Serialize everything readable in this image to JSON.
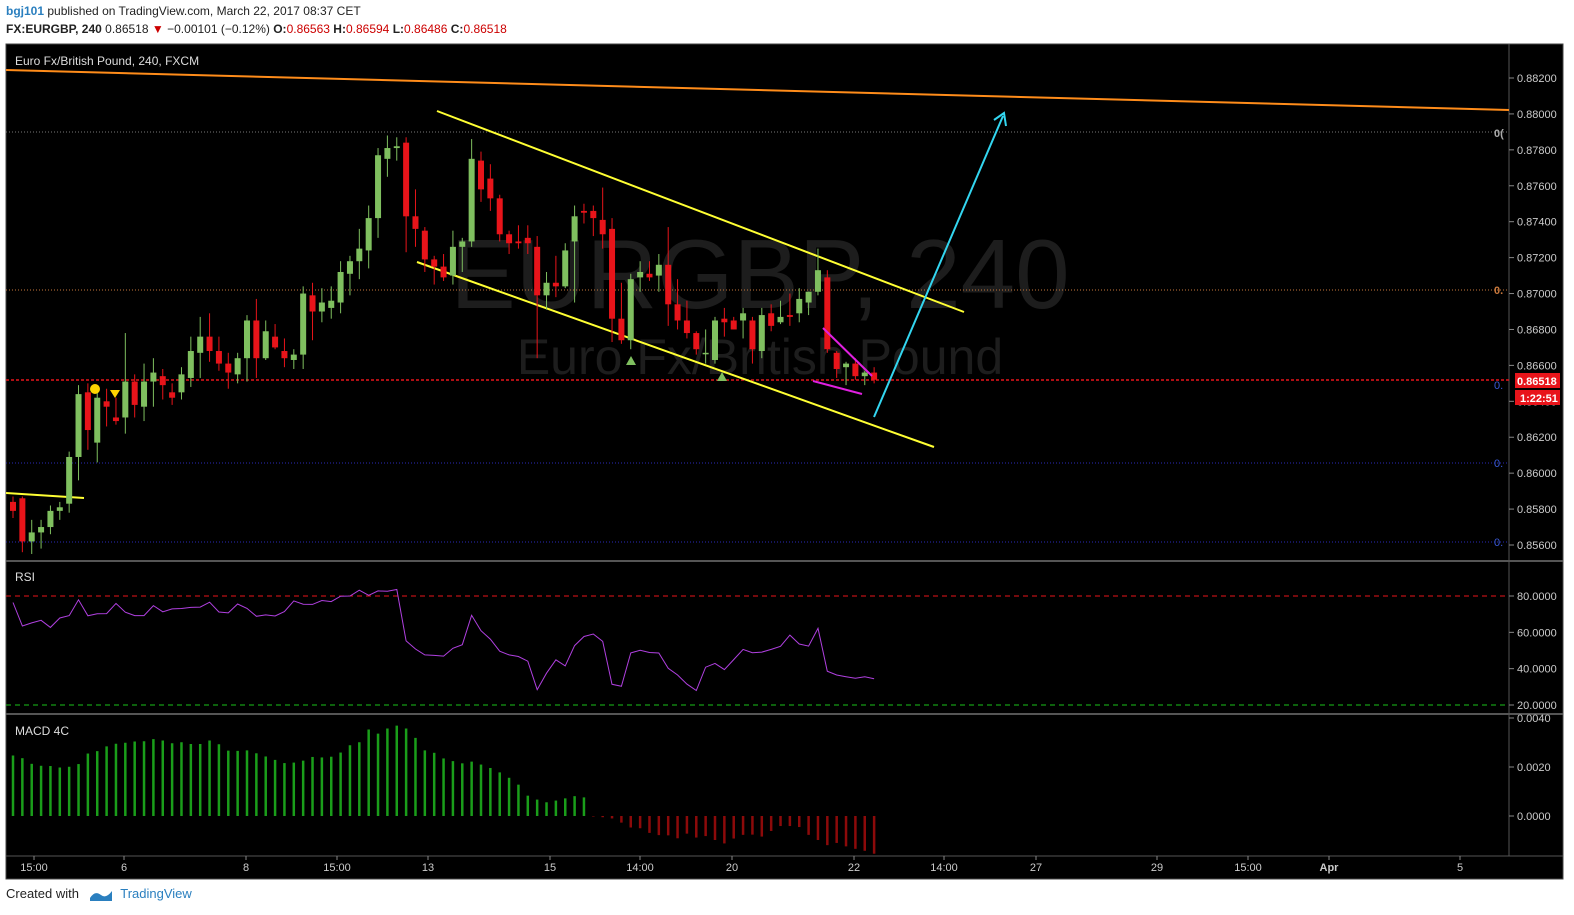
{
  "header": {
    "user": "bgj101",
    "published_text": "published on TradingView.com, March 22, 2017 08:37 CET",
    "symbol": "FX:EURGBP, 240",
    "last": "0.86518",
    "change": "−0.00101 (−0.12%)",
    "o_label": "O:",
    "o": "0.86563",
    "h_label": "H:",
    "h": "0.86594",
    "l_label": "L:",
    "l": "0.86486",
    "c_label": "C:",
    "c": "0.86518"
  },
  "chart_title": "Euro Fx/British Pound, 240, FXCM",
  "watermark": {
    "symbol": "EURGBP, 240",
    "name": "Euro Fx/British Pound"
  },
  "price_tag": "0.86518",
  "countdown": "1:22:51",
  "fib_labels": [
    "0(",
    "0.",
    "0.",
    "0.",
    "0."
  ],
  "footer": {
    "created_with": "Created with",
    "brand": "TradingView"
  },
  "colors": {
    "background": "#000000",
    "up": "#7fbf5f",
    "down": "#e8141a",
    "channel": "#ffff33",
    "resistance": "#ff8c1a",
    "arrow": "#33d6f0",
    "wedge": "#e020e0",
    "rsi": "#b040e0",
    "macd_up": "#1a9e1a",
    "macd_down": "#8c0a0a"
  },
  "chart_data": [
    {
      "type": "candlestick",
      "title": "Euro Fx/British Pound, 240, FXCM",
      "ylim": [
        0.8549,
        0.8834
      ],
      "yticks": [
        "0.88200",
        "0.88000",
        "0.87800",
        "0.87600",
        "0.87400",
        "0.87200",
        "0.87000",
        "0.86800",
        "0.86600",
        "0.86400",
        "0.86200",
        "0.86000",
        "0.85800",
        "0.85600"
      ],
      "xticks": [
        "15:00",
        "6",
        "8",
        "15:00",
        "13",
        "15",
        "14:00",
        "20",
        "22",
        "14:00",
        "27",
        "29",
        "15:00",
        "Apr",
        "5"
      ],
      "candles": [
        [
          0.8584,
          0.8587,
          0.8575,
          0.8579
        ],
        [
          0.8586,
          0.8587,
          0.8556,
          0.8562
        ],
        [
          0.8562,
          0.8574,
          0.8555,
          0.8567
        ],
        [
          0.8567,
          0.8574,
          0.8558,
          0.857
        ],
        [
          0.857,
          0.8582,
          0.8566,
          0.8579
        ],
        [
          0.8579,
          0.8584,
          0.8574,
          0.8581
        ],
        [
          0.8583,
          0.8612,
          0.8578,
          0.8609
        ],
        [
          0.8609,
          0.8649,
          0.8596,
          0.8644
        ],
        [
          0.8645,
          0.865,
          0.8613,
          0.8624
        ],
        [
          0.8617,
          0.8647,
          0.8606,
          0.8642
        ],
        [
          0.864,
          0.8647,
          0.8626,
          0.8637
        ],
        [
          0.8631,
          0.8642,
          0.8627,
          0.8629
        ],
        [
          0.8631,
          0.8678,
          0.8622,
          0.8651
        ],
        [
          0.8651,
          0.8655,
          0.8631,
          0.8638
        ],
        [
          0.8637,
          0.8661,
          0.8629,
          0.8651
        ],
        [
          0.8651,
          0.8664,
          0.8637,
          0.8656
        ],
        [
          0.8654,
          0.8658,
          0.8641,
          0.8649
        ],
        [
          0.8645,
          0.865,
          0.8638,
          0.8642
        ],
        [
          0.8645,
          0.8659,
          0.8641,
          0.8655
        ],
        [
          0.8653,
          0.8676,
          0.8648,
          0.8668
        ],
        [
          0.8667,
          0.8687,
          0.8653,
          0.8676
        ],
        [
          0.8676,
          0.8689,
          0.8662,
          0.8668
        ],
        [
          0.8668,
          0.8676,
          0.8657,
          0.8661
        ],
        [
          0.8661,
          0.8667,
          0.8647,
          0.8656
        ],
        [
          0.8655,
          0.8667,
          0.865,
          0.8664
        ],
        [
          0.8664,
          0.8688,
          0.8651,
          0.8685
        ],
        [
          0.8685,
          0.8697,
          0.8653,
          0.8664
        ],
        [
          0.8664,
          0.8685,
          0.8663,
          0.8679
        ],
        [
          0.8676,
          0.8683,
          0.8669,
          0.867
        ],
        [
          0.8668,
          0.8675,
          0.8659,
          0.8664
        ],
        [
          0.8663,
          0.8669,
          0.8658,
          0.8666
        ],
        [
          0.8666,
          0.8704,
          0.8658,
          0.87
        ],
        [
          0.8699,
          0.8706,
          0.8674,
          0.869
        ],
        [
          0.869,
          0.8703,
          0.8684,
          0.8695
        ],
        [
          0.8692,
          0.8704,
          0.8686,
          0.8696
        ],
        [
          0.8695,
          0.8718,
          0.8689,
          0.8712
        ],
        [
          0.8711,
          0.8721,
          0.8699,
          0.8718
        ],
        [
          0.8718,
          0.8736,
          0.8708,
          0.8725
        ],
        [
          0.8724,
          0.8749,
          0.8714,
          0.8742
        ],
        [
          0.8742,
          0.8781,
          0.8731,
          0.8777
        ],
        [
          0.8775,
          0.8788,
          0.8765,
          0.8781
        ],
        [
          0.8781,
          0.8787,
          0.8774,
          0.8782
        ],
        [
          0.8784,
          0.8787,
          0.8723,
          0.8743
        ],
        [
          0.8743,
          0.8758,
          0.8726,
          0.8736
        ],
        [
          0.8735,
          0.8737,
          0.8712,
          0.8719
        ],
        [
          0.8719,
          0.8721,
          0.8705,
          0.8715
        ],
        [
          0.8715,
          0.8722,
          0.8707,
          0.8709
        ],
        [
          0.871,
          0.8735,
          0.8705,
          0.8726
        ],
        [
          0.8726,
          0.8731,
          0.8712,
          0.8729
        ],
        [
          0.8729,
          0.8786,
          0.8726,
          0.8775
        ],
        [
          0.8774,
          0.8779,
          0.8751,
          0.8758
        ],
        [
          0.8764,
          0.8772,
          0.8746,
          0.8753
        ],
        [
          0.8753,
          0.8755,
          0.8729,
          0.8733
        ],
        [
          0.8733,
          0.8735,
          0.8722,
          0.8728
        ],
        [
          0.8729,
          0.8738,
          0.8725,
          0.8728
        ],
        [
          0.8731,
          0.8738,
          0.8722,
          0.8728
        ],
        [
          0.8726,
          0.8732,
          0.8664,
          0.8699
        ],
        [
          0.8699,
          0.8712,
          0.8691,
          0.8706
        ],
        [
          0.8706,
          0.8721,
          0.8698,
          0.8704
        ],
        [
          0.8704,
          0.8728,
          0.8703,
          0.8724
        ],
        [
          0.8729,
          0.8749,
          0.8695,
          0.8743
        ],
        [
          0.8746,
          0.875,
          0.8739,
          0.8745
        ],
        [
          0.8746,
          0.8749,
          0.8732,
          0.8742
        ],
        [
          0.8741,
          0.8759,
          0.8725,
          0.8733
        ],
        [
          0.8736,
          0.8742,
          0.8673,
          0.8686
        ],
        [
          0.8686,
          0.8706,
          0.8672,
          0.8674
        ],
        [
          0.8674,
          0.8711,
          0.8669,
          0.8708
        ],
        [
          0.8709,
          0.8718,
          0.8701,
          0.8712
        ],
        [
          0.8711,
          0.8718,
          0.8707,
          0.8709
        ],
        [
          0.871,
          0.8722,
          0.8701,
          0.8716
        ],
        [
          0.8716,
          0.8737,
          0.8682,
          0.8694
        ],
        [
          0.8694,
          0.8708,
          0.868,
          0.8685
        ],
        [
          0.8685,
          0.8696,
          0.8675,
          0.8678
        ],
        [
          0.8678,
          0.8679,
          0.8666,
          0.8669
        ],
        [
          0.8667,
          0.868,
          0.8661,
          0.8667
        ],
        [
          0.8663,
          0.8687,
          0.8661,
          0.8685
        ],
        [
          0.8686,
          0.8692,
          0.8676,
          0.8684
        ],
        [
          0.8685,
          0.8687,
          0.868,
          0.868
        ],
        [
          0.8685,
          0.8692,
          0.8675,
          0.8689
        ],
        [
          0.8685,
          0.8687,
          0.8661,
          0.8669
        ],
        [
          0.8668,
          0.8692,
          0.8664,
          0.8688
        ],
        [
          0.8689,
          0.8694,
          0.8679,
          0.8682
        ],
        [
          0.8684,
          0.8696,
          0.8683,
          0.8687
        ],
        [
          0.8688,
          0.87,
          0.8682,
          0.8687
        ],
        [
          0.8689,
          0.8703,
          0.8684,
          0.8697
        ],
        [
          0.8695,
          0.8701,
          0.8688,
          0.8701
        ],
        [
          0.8701,
          0.8725,
          0.8699,
          0.8713
        ],
        [
          0.8709,
          0.8713,
          0.8667,
          0.8669
        ],
        [
          0.8667,
          0.8668,
          0.8653,
          0.8658
        ],
        [
          0.8659,
          0.8662,
          0.8649,
          0.8661
        ],
        [
          0.8661,
          0.8664,
          0.8652,
          0.8654
        ],
        [
          0.8654,
          0.8657,
          0.8649,
          0.8656
        ],
        [
          0.8656,
          0.8659,
          0.865,
          0.8652
        ]
      ],
      "drawings": [
        "descending channel",
        "falling wedge",
        "long-term resistance",
        "target arrow",
        "fib retracement levels"
      ],
      "current_price": 0.86518
    },
    {
      "type": "line",
      "title": "RSI",
      "ylim": [
        18,
        87
      ],
      "yticks": [
        "80.0000",
        "60.0000",
        "40.0000",
        "20.0000"
      ],
      "levels": [
        80,
        20
      ],
      "values": [
        76.4,
        63.5,
        65.2,
        66.6,
        62.7,
        67.9,
        69.2,
        77.9,
        69.1,
        70.2,
        70.3,
        75.9,
        71.1,
        69.2,
        69.2,
        74.7,
        71.3,
        72.9,
        73.1,
        73.7,
        73.9,
        76.6,
        71.2,
        70.7,
        75.6,
        73.2,
        68.8,
        69.6,
        69.0,
        71.4,
        77.3,
        75.5,
        75.4,
        77.5,
        76.9,
        79.9,
        80.0,
        83.2,
        80.4,
        82.8,
        82.6,
        83.6,
        55.3,
        50.8,
        47.6,
        47.3,
        46.9,
        51.2,
        53.2,
        69.4,
        60.9,
        56.2,
        49.6,
        47.6,
        46.7,
        44.1,
        28.4,
        37.5,
        44.9,
        41.5,
        52.7,
        57.7,
        59.1,
        55.0,
        31.4,
        30.3,
        48.7,
        50.1,
        48.9,
        48.6,
        40.2,
        36.5,
        31.5,
        28.0,
        40.8,
        42.9,
        39.5,
        45.0,
        50.6,
        48.8,
        49.1,
        50.6,
        52.3,
        58.5,
        53.6,
        52.4,
        62.2,
        38.6,
        36.5,
        35.6,
        34.7,
        35.6,
        34.5
      ]
    },
    {
      "type": "bar",
      "title": "MACD 4C",
      "ylim": [
        -0.0013,
        0.0042
      ],
      "yticks": [
        "0.0040",
        "0.0020",
        "0.0000"
      ],
      "values": [
        0.00247,
        0.00236,
        0.00213,
        0.00205,
        0.00204,
        0.00198,
        0.00201,
        0.00212,
        0.00255,
        0.00265,
        0.00284,
        0.00295,
        0.00299,
        0.00304,
        0.00305,
        0.00314,
        0.00308,
        0.00297,
        0.00301,
        0.00294,
        0.00294,
        0.00308,
        0.00293,
        0.00267,
        0.00266,
        0.00268,
        0.00256,
        0.00243,
        0.00229,
        0.00216,
        0.00218,
        0.00226,
        0.00241,
        0.00239,
        0.00242,
        0.00259,
        0.00289,
        0.00301,
        0.00353,
        0.00336,
        0.00357,
        0.00369,
        0.00357,
        0.00319,
        0.00268,
        0.00258,
        0.00235,
        0.00224,
        0.00215,
        0.00222,
        0.0021,
        0.00196,
        0.00178,
        0.00156,
        0.00128,
        0.00083,
        0.00067,
        0.00056,
        0.00063,
        0.00072,
        0.00081,
        0.00076,
        -2e-05,
        -5e-05,
        -0.0001,
        -0.00027,
        -0.00047,
        -0.0005,
        -0.00069,
        -0.00078,
        -0.00079,
        -0.00091,
        -0.00072,
        -0.00088,
        -0.00082,
        -0.00098,
        -0.00112,
        -0.00092,
        -0.00077,
        -0.00076,
        -0.00084,
        -0.00061,
        -0.00041,
        -0.00041,
        -0.00045,
        -0.00077,
        -0.00098,
        -0.00119,
        -0.0011,
        -0.00124,
        -0.00134,
        -0.00142,
        -0.00154
      ]
    }
  ]
}
